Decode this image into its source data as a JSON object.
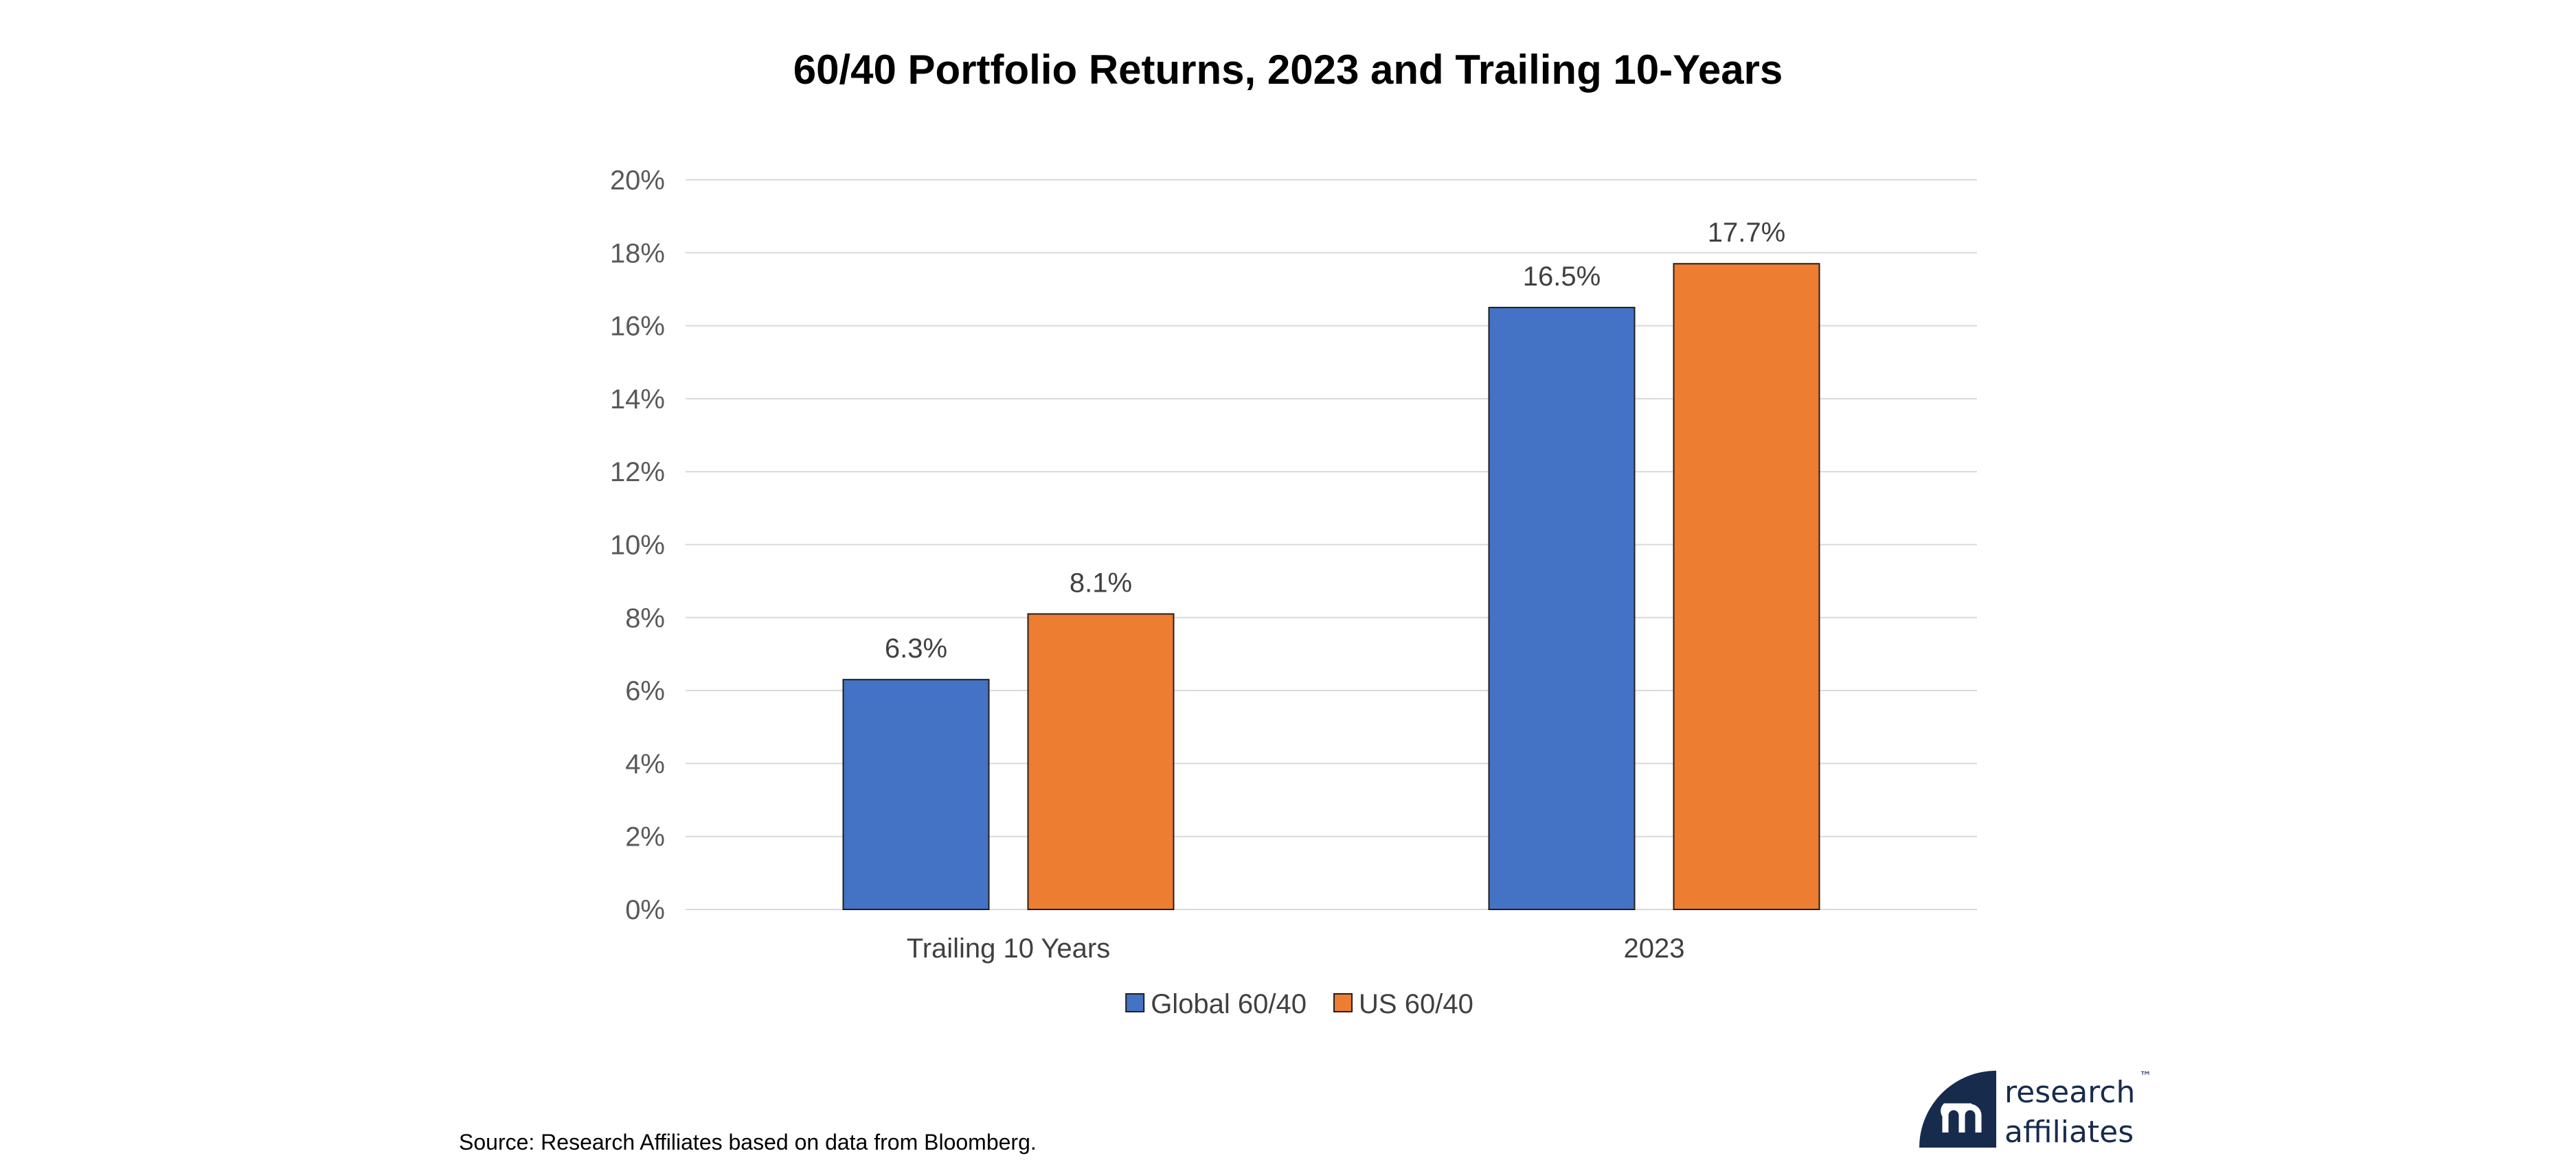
{
  "chart_data": {
    "type": "bar",
    "title": "60/40 Portfolio Returns, 2023 and Trailing 10-Years",
    "categories": [
      "Trailing 10 Years",
      "2023"
    ],
    "series": [
      {
        "name": "Global 60/40",
        "color": "#4472c4",
        "values": [
          6.3,
          16.5
        ],
        "labels": [
          "6.3%",
          "16.5%"
        ]
      },
      {
        "name": "US 60/40",
        "color": "#ed7d31",
        "values": [
          8.1,
          17.7
        ],
        "labels": [
          "8.1%",
          "17.7%"
        ]
      }
    ],
    "xlabel": "",
    "ylabel": "",
    "ylim": [
      0,
      20
    ],
    "yticks": [
      0,
      2,
      4,
      6,
      8,
      10,
      12,
      14,
      16,
      18,
      20
    ],
    "ytick_labels": [
      "0%",
      "2%",
      "4%",
      "6%",
      "8%",
      "10%",
      "12%",
      "14%",
      "16%",
      "18%",
      "20%"
    ],
    "grid": true,
    "legend_position": "bottom"
  },
  "footer": {
    "source": "Source: Research Affiliates based on data from Bloomberg.",
    "logo_text_line1": "research",
    "logo_text_line2": "affiliates",
    "logo_tm": "™"
  }
}
